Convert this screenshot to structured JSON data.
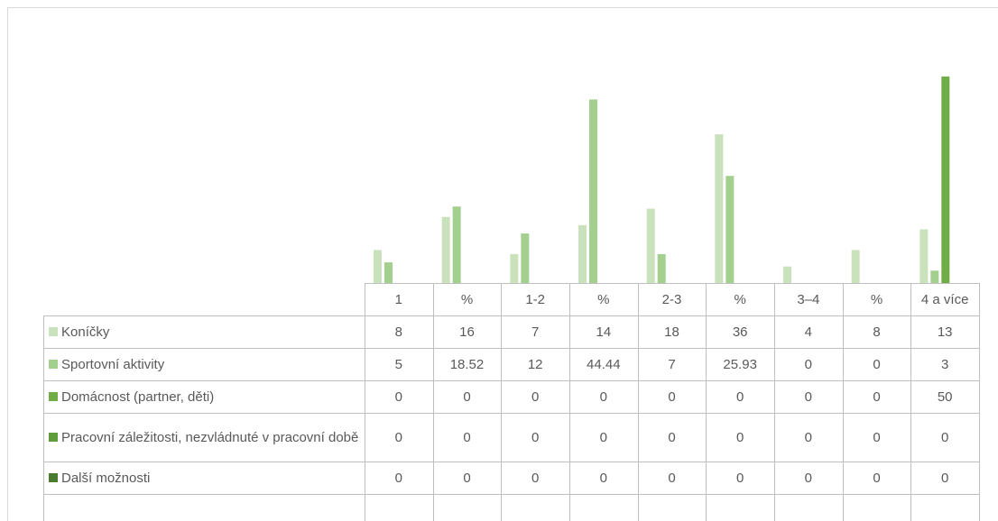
{
  "chart_data": {
    "type": "bar",
    "categories": [
      "1",
      "%",
      "1-2",
      "%",
      "2-3",
      "%",
      "3–4",
      "%",
      "4 a více"
    ],
    "series": [
      {
        "name": "Koníčky",
        "color": "#c9e2bc",
        "values": [
          8,
          16,
          7,
          14,
          18,
          36,
          4,
          8,
          13
        ]
      },
      {
        "name": "Sportovní aktivity",
        "color": "#a3cf8f",
        "values": [
          5,
          18.52,
          12,
          44.44,
          7,
          25.93,
          0,
          0,
          3
        ]
      },
      {
        "name": "Domácnost (partner, děti)",
        "color": "#70ad47",
        "values": [
          0,
          0,
          0,
          0,
          0,
          0,
          0,
          0,
          50
        ]
      },
      {
        "name": "Pracovní záležitosti, nezvládnuté v pracovní době",
        "color": "#5f9c3c",
        "values": [
          0,
          0,
          0,
          0,
          0,
          0,
          0,
          0,
          0
        ]
      },
      {
        "name": "Další možnosti",
        "color": "#4a7c2f",
        "values": [
          0,
          0,
          0,
          0,
          0,
          0,
          0,
          0,
          0
        ]
      }
    ],
    "ylim": [
      0,
      60
    ]
  }
}
